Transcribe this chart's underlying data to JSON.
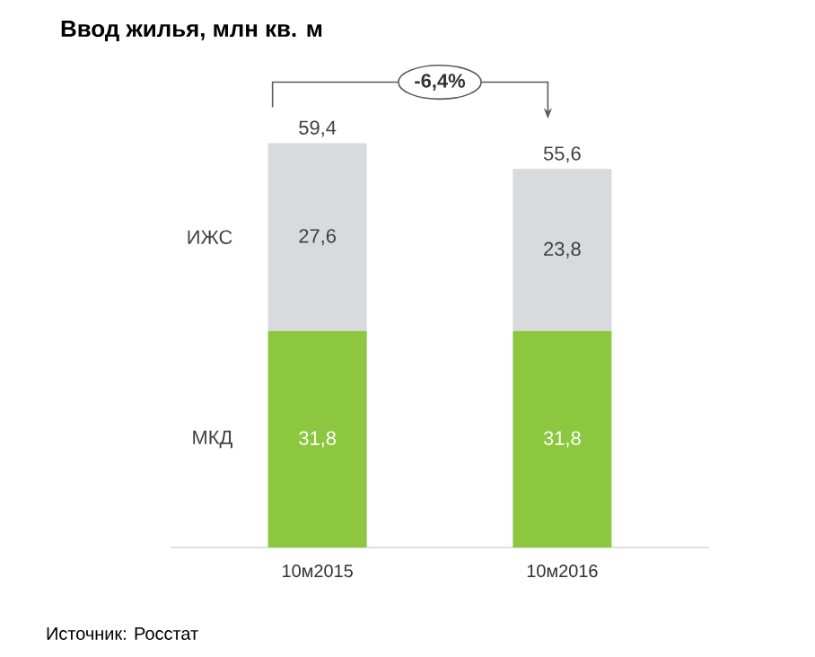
{
  "chart_data": {
    "type": "bar",
    "stacked": true,
    "title": "Ввод жилья, млн кв. м",
    "categories": [
      "10м2015",
      "10м2016"
    ],
    "series": [
      {
        "name": "МКД",
        "color": "#8dc63f",
        "values": [
          31.8,
          31.8
        ],
        "value_labels": [
          "31,8",
          "31,8"
        ]
      },
      {
        "name": "ИЖС",
        "color": "#d9dadc",
        "values": [
          27.6,
          23.8
        ],
        "value_labels": [
          "27,6",
          "23,8"
        ]
      }
    ],
    "totals": [
      "59,4",
      "55,6"
    ],
    "annotations": [
      "-6,4%",
      "Источник: Росстат"
    ]
  }
}
